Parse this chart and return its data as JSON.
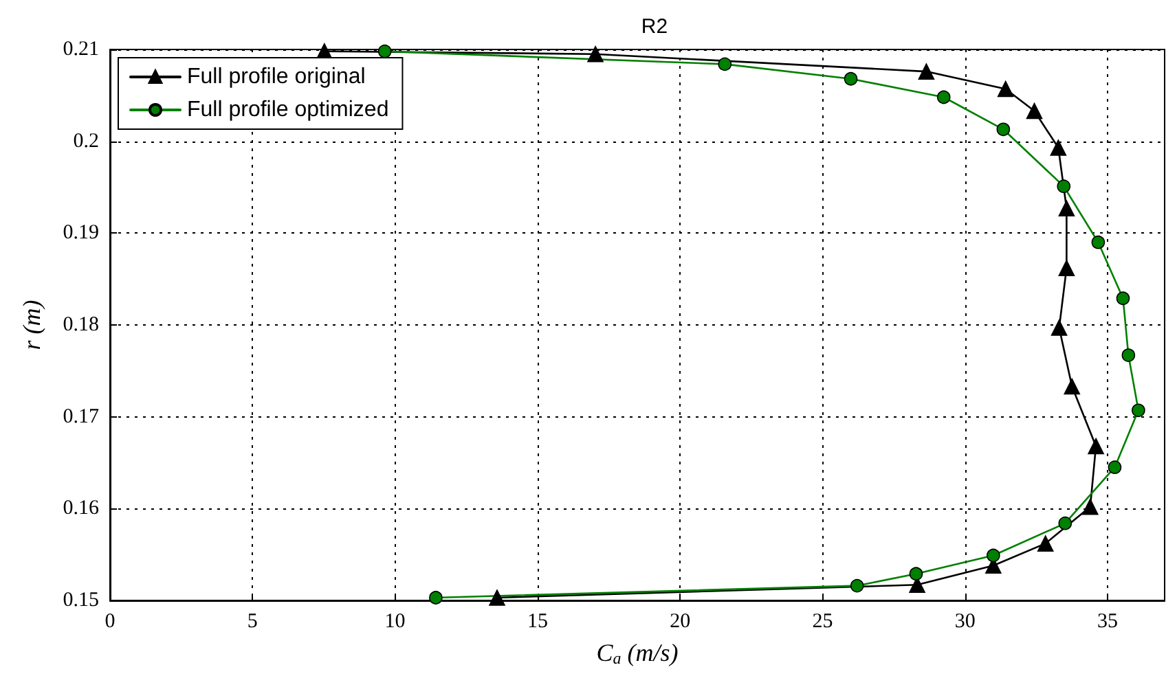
{
  "chart_data": {
    "type": "line",
    "title": "R2",
    "xlabel": "C$_{a}$ (m/s)",
    "ylabel": "r (m)",
    "xlim": [
      0,
      37
    ],
    "xticks": [
      0,
      5,
      10,
      15,
      20,
      25,
      30,
      35
    ],
    "ylim": [
      0.15,
      0.21
    ],
    "yticks": [
      0.15,
      0.16,
      0.17,
      0.18,
      0.19,
      0.2,
      0.21
    ],
    "grid": true,
    "legend": "top left",
    "series": [
      {
        "name": "Full profile original",
        "color": "#000000",
        "marker": "triangle",
        "x": [
          7.52,
          17.03,
          28.64,
          31.42,
          32.43,
          33.27,
          33.56,
          33.56,
          33.3,
          33.75,
          34.59,
          34.39,
          32.82,
          30.99,
          28.32,
          13.58
        ],
        "values": [
          0.2098,
          0.2095,
          0.2076,
          0.2057,
          0.2033,
          0.1993,
          0.1927,
          0.1862,
          0.1797,
          0.1733,
          0.1668,
          0.1602,
          0.1562,
          0.1538,
          0.1517,
          0.1503
        ]
      },
      {
        "name": "Full profile optimized",
        "color": "#008000",
        "marker": "circle",
        "x": [
          9.64,
          21.57,
          25.99,
          29.25,
          31.34,
          33.46,
          34.67,
          35.54,
          35.73,
          36.08,
          35.25,
          33.51,
          30.99,
          28.28,
          26.21,
          11.43
        ],
        "values": [
          0.2098,
          0.2084,
          0.2068,
          0.2048,
          0.2013,
          0.1951,
          0.189,
          0.1829,
          0.1767,
          0.1707,
          0.1645,
          0.1584,
          0.1549,
          0.1529,
          0.1516,
          0.1503
        ]
      }
    ]
  }
}
